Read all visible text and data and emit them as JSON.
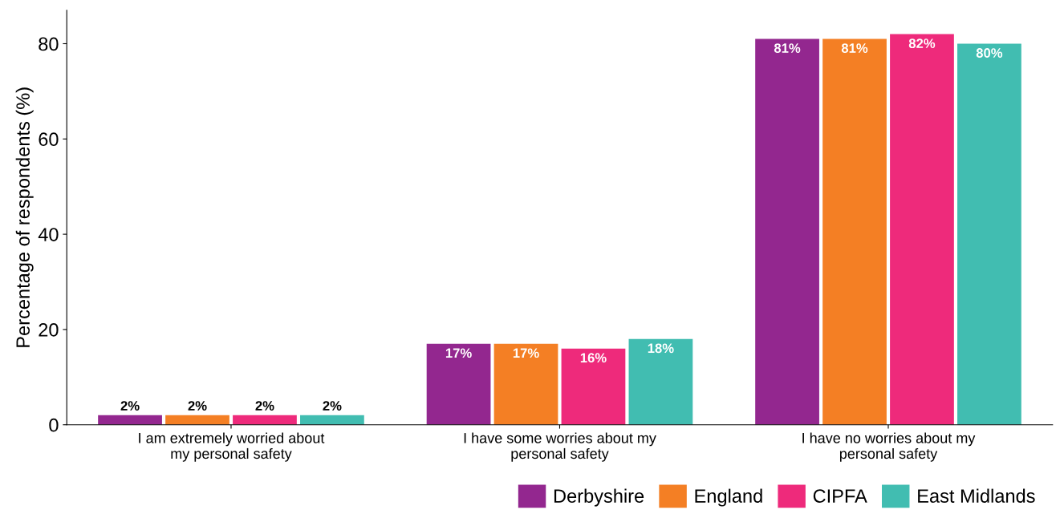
{
  "chart_data": {
    "type": "bar",
    "ylabel": "Percentage of respondents (%)",
    "categories": [
      "I am extremely worried about\nmy personal safety",
      "I have some worries about my\npersonal safety",
      "I have no worries about my\npersonal safety"
    ],
    "series": [
      {
        "name": "Derbyshire",
        "color": "#93278f",
        "values": [
          2,
          17,
          81
        ],
        "value_labels": [
          "2%",
          "17%",
          "81%"
        ]
      },
      {
        "name": "England",
        "color": "#f47f24",
        "values": [
          2,
          17,
          81
        ],
        "value_labels": [
          "2%",
          "17%",
          "81%"
        ]
      },
      {
        "name": "CIPFA",
        "color": "#ee2a7b",
        "values": [
          2,
          16,
          82
        ],
        "value_labels": [
          "2%",
          "16%",
          "82%"
        ]
      },
      {
        "name": "East Midlands",
        "color": "#41bdb1",
        "values": [
          2,
          18,
          80
        ],
        "value_labels": [
          "2%",
          "18%",
          "80%"
        ]
      }
    ],
    "ylim": [
      0,
      87
    ],
    "yticks": [
      0,
      20,
      40,
      60,
      80
    ],
    "grid": false,
    "legend": "bottom right"
  }
}
